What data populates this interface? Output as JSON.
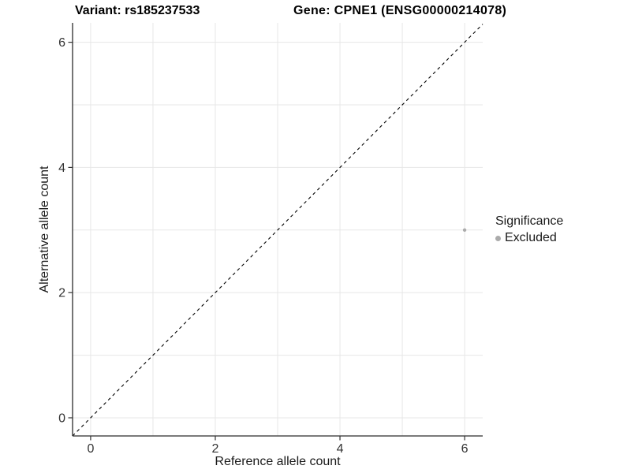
{
  "header": {
    "variant_title": "Variant: rs185237533",
    "gene_title": "Gene: CPNE1 (ENSG00000214078)"
  },
  "legend": {
    "title": "Significance",
    "items": [
      {
        "label": "Excluded",
        "color": "#ababab",
        "marker": "circle-icon"
      }
    ]
  },
  "chart_data": {
    "type": "scatter",
    "title": "Variant: rs185237533 / Gene: CPNE1 (ENSG00000214078)",
    "xlabel": "Reference allele count",
    "ylabel": "Alternative allele count",
    "xlim": [
      -0.29,
      6.29
    ],
    "ylim": [
      -0.29,
      6.31
    ],
    "x_ticks": [
      0,
      2,
      4,
      6
    ],
    "x_tick_labels": [
      "0",
      "2",
      "4",
      "6"
    ],
    "y_ticks": [
      0,
      2,
      4,
      6
    ],
    "y_tick_labels": [
      "0",
      "2",
      "4",
      "6"
    ],
    "gridlines": [
      0,
      1,
      2,
      3,
      4,
      5,
      6
    ],
    "grid": "on",
    "legend_position": "right",
    "legend_title": "Significance",
    "series": [
      {
        "name": "Excluded",
        "color": "#ababab",
        "points": [
          {
            "x": 6,
            "y": 3
          }
        ]
      }
    ],
    "identity_line": {
      "slope": 1,
      "intercept": 0,
      "style": "dashed",
      "color": "#000000"
    },
    "colors": {
      "gridline": "#e7e7e7",
      "axis_line": "#2b2b2b",
      "tick_mark": "#333333",
      "tick_label": "#333333",
      "background": "#ffffff"
    }
  }
}
